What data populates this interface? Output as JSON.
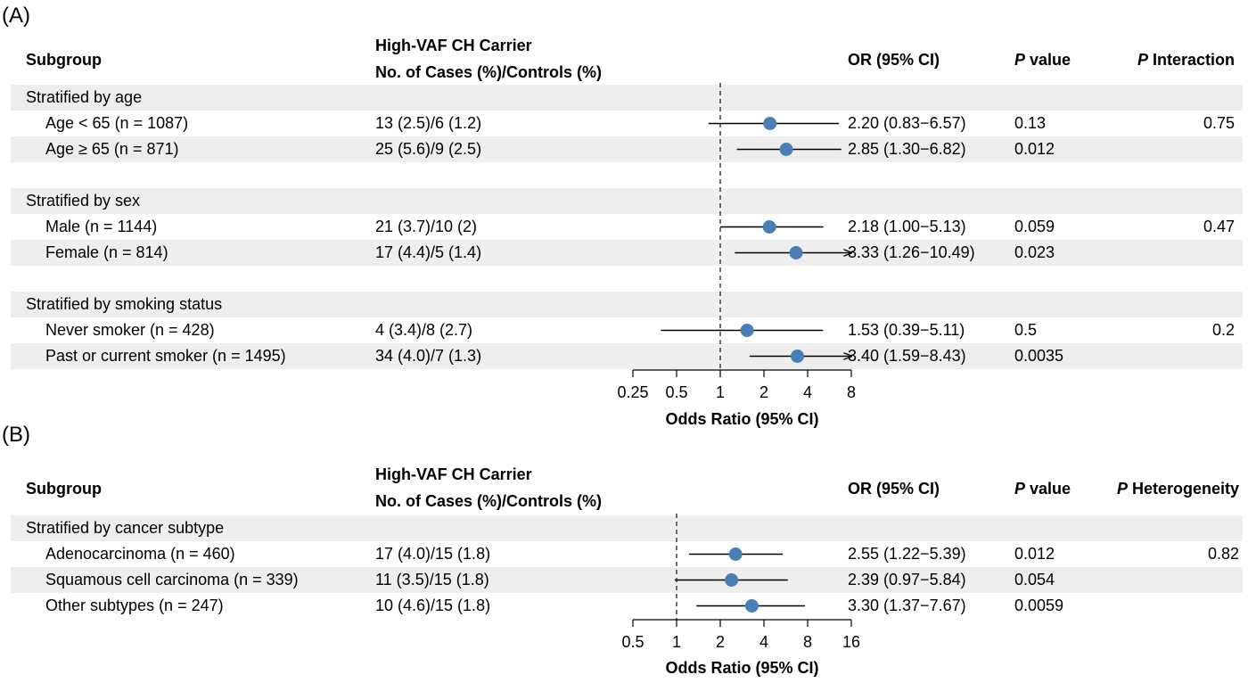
{
  "panels": [
    {
      "label": "(A)",
      "headers": {
        "subgroup": "Subgroup",
        "carrier_line1": "High-VAF CH Carrier",
        "carrier_line2": "No. of Cases (%)/Controls (%)",
        "or": "OR (95% CI)",
        "p_italic": "P",
        "p_rest": " value",
        "pint_italic": "P",
        "pint_rest": " Interaction"
      },
      "rows": [
        {
          "type": "group",
          "label": "Stratified by age"
        },
        {
          "type": "data",
          "label": "Age < 65 (n = 1087)",
          "cases": "13 (2.5)/6 (1.2)",
          "or_text": "2.20 (0.83−6.57)",
          "p": "0.13",
          "pint": "0.75"
        },
        {
          "type": "data",
          "label": "Age ≥ 65 (n = 871)",
          "cases": "25 (5.6)/9 (2.5)",
          "or_text": "2.85 (1.30−6.82)",
          "p": "0.012",
          "pint": ""
        },
        {
          "type": "blank"
        },
        {
          "type": "group",
          "label": "Stratified by sex"
        },
        {
          "type": "data",
          "label": "Male (n = 1144)",
          "cases": "21 (3.7)/10 (2)",
          "or_text": "2.18 (1.00−5.13)",
          "p": "0.059",
          "pint": "0.47"
        },
        {
          "type": "data",
          "label": "Female (n = 814)",
          "cases": "17 (4.4)/5 (1.4)",
          "or_text": "3.33 (1.26−10.49)",
          "p": "0.023",
          "pint": ""
        },
        {
          "type": "blank"
        },
        {
          "type": "group",
          "label": "Stratified by smoking status"
        },
        {
          "type": "data",
          "label": "Never smoker (n = 428)",
          "cases": "4 (3.4)/8 (2.7)",
          "or_text": "1.53 (0.39−5.11)",
          "p": "0.5",
          "pint": "0.2"
        },
        {
          "type": "data",
          "label": "Past or current smoker (n = 1495)",
          "cases": "34 (4.0)/7 (1.3)",
          "or_text": "3.40 (1.59−8.43)",
          "p": "0.0035",
          "pint": ""
        }
      ],
      "axis_title": "Odds Ratio (95% CI)"
    },
    {
      "label": "(B)",
      "headers": {
        "subgroup": "Subgroup",
        "carrier_line1": "High-VAF CH Carrier",
        "carrier_line2": "No. of Cases (%)/Controls (%)",
        "or": "OR (95% CI)",
        "p_italic": "P",
        "p_rest": " value",
        "pint_italic": "P",
        "pint_rest": " Heterogeneity"
      },
      "rows": [
        {
          "type": "group",
          "label": "Stratified by cancer subtype"
        },
        {
          "type": "data",
          "label": "Adenocarcinoma (n = 460)",
          "cases": "17 (4.0)/15 (1.8)",
          "or_text": "2.55 (1.22−5.39)",
          "p": "0.012",
          "pint": "0.82"
        },
        {
          "type": "data",
          "label": "Squamous cell carcinoma (n = 339)",
          "cases": "11 (3.5)/15 (1.8)",
          "or_text": "2.39 (0.97−5.84)",
          "p": "0.054",
          "pint": ""
        },
        {
          "type": "data",
          "label": "Other subtypes (n = 247)",
          "cases": "10 (4.6)/15 (1.8)",
          "or_text": "3.30 (1.37−7.67)",
          "p": "0.0059",
          "pint": ""
        }
      ],
      "axis_title": "Odds Ratio (95% CI)"
    }
  ],
  "chart_data": [
    {
      "type": "forest",
      "xlabel": "Odds Ratio (95% CI)",
      "x_scale": "log2",
      "xlim": [
        0.25,
        8
      ],
      "xticks": [
        0.25,
        0.5,
        1,
        2,
        4,
        8
      ],
      "xtick_labels": [
        "0.25",
        "0.5",
        "1",
        "2",
        "4",
        "8"
      ],
      "reference_line": 1,
      "marker_color": "#4a7fb5",
      "points": [
        {
          "label": "Age < 65 (n = 1087)",
          "or": 2.2,
          "lo": 0.83,
          "hi": 6.57,
          "arrow": false
        },
        {
          "label": "Age ≥ 65 (n = 871)",
          "or": 2.85,
          "lo": 1.3,
          "hi": 6.82,
          "arrow": false
        },
        {
          "label": "Male (n = 1144)",
          "or": 2.18,
          "lo": 1.0,
          "hi": 5.13,
          "arrow": false
        },
        {
          "label": "Female (n = 814)",
          "or": 3.33,
          "lo": 1.26,
          "hi": 10.49,
          "arrow": true
        },
        {
          "label": "Never smoker (n = 428)",
          "or": 1.53,
          "lo": 0.39,
          "hi": 5.11,
          "arrow": false
        },
        {
          "label": "Past or current smoker (n = 1495)",
          "or": 3.4,
          "lo": 1.59,
          "hi": 8.43,
          "arrow": true
        }
      ]
    },
    {
      "type": "forest",
      "xlabel": "Odds Ratio (95% CI)",
      "x_scale": "log2",
      "xlim": [
        0.5,
        16
      ],
      "xticks": [
        0.5,
        1,
        2,
        4,
        8,
        16
      ],
      "xtick_labels": [
        "0.5",
        "1",
        "2",
        "4",
        "8",
        "16"
      ],
      "reference_line": 1,
      "marker_color": "#4a7fb5",
      "points": [
        {
          "label": "Adenocarcinoma (n = 460)",
          "or": 2.55,
          "lo": 1.22,
          "hi": 5.39,
          "arrow": false
        },
        {
          "label": "Squamous cell carcinoma (n = 339)",
          "or": 2.39,
          "lo": 0.97,
          "hi": 5.84,
          "arrow": false
        },
        {
          "label": "Other subtypes (n = 247)",
          "or": 3.3,
          "lo": 1.37,
          "hi": 7.67,
          "arrow": false
        }
      ]
    }
  ]
}
